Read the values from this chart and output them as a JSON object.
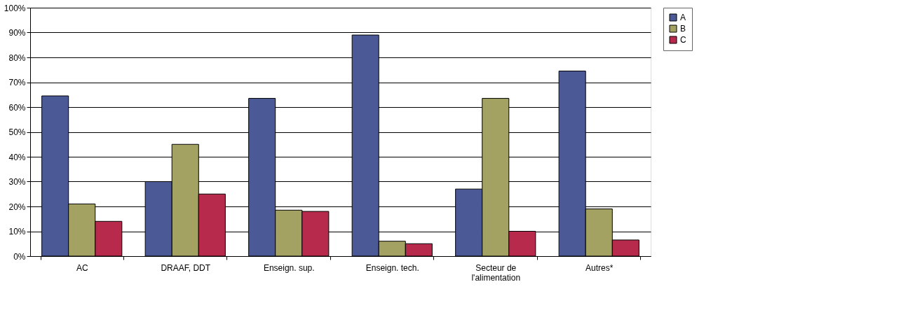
{
  "chart_data": {
    "type": "bar",
    "categories": [
      "AC",
      "DRAAF, DDT",
      "Enseign. sup.",
      "Enseign. tech.",
      "Secteur de l'alimentation",
      "Autres*"
    ],
    "series": [
      {
        "name": "A",
        "color": "#4b5a96",
        "values": [
          64.5,
          30,
          63.5,
          89,
          27,
          74.5
        ]
      },
      {
        "name": "B",
        "color": "#a3a263",
        "values": [
          21,
          45,
          18.5,
          6,
          63.5,
          19
        ]
      },
      {
        "name": "C",
        "color": "#b82a4c",
        "values": [
          14,
          25,
          18,
          5,
          10,
          6.5
        ]
      }
    ],
    "ylim": [
      0,
      100
    ],
    "yticks": [
      {
        "value": 0,
        "label": "0%"
      },
      {
        "value": 10,
        "label": "10%"
      },
      {
        "value": 20,
        "label": "20%"
      },
      {
        "value": 30,
        "label": "30%"
      },
      {
        "value": 40,
        "label": "40%"
      },
      {
        "value": 50,
        "label": "50%"
      },
      {
        "value": 60,
        "label": "60%"
      },
      {
        "value": 70,
        "label": "70%"
      },
      {
        "value": 80,
        "label": "80%"
      },
      {
        "value": 90,
        "label": "90%"
      },
      {
        "value": 100,
        "label": "100%"
      }
    ],
    "grid": "y",
    "legend": "right"
  }
}
